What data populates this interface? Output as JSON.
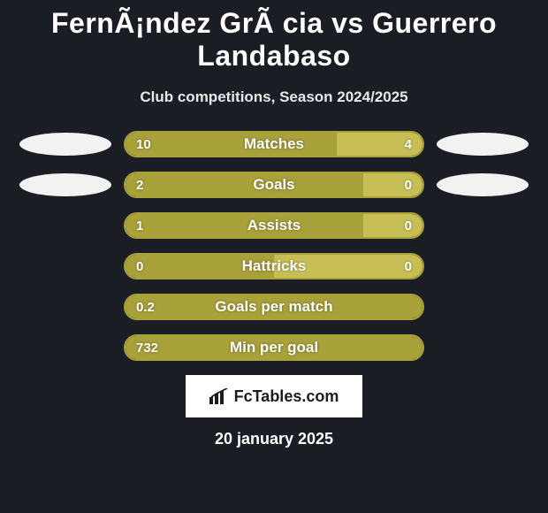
{
  "title": "FernÃ¡ndez GrÃ cia vs Guerrero Landabaso",
  "subtitle": "Club competitions, Season 2024/2025",
  "colors": {
    "left_bar": "#a9a13a",
    "right_bar": "#c7bf56",
    "border": "#a9a13a",
    "avatar": "#f2f2f2",
    "bg": "#1a1d24"
  },
  "rows": [
    {
      "label": "Matches",
      "left_val": "10",
      "right_val": "4",
      "left_pct": 71,
      "right_pct": 29,
      "show_avatars": true
    },
    {
      "label": "Goals",
      "left_val": "2",
      "right_val": "0",
      "left_pct": 80,
      "right_pct": 20,
      "show_avatars": true
    },
    {
      "label": "Assists",
      "left_val": "1",
      "right_val": "0",
      "left_pct": 80,
      "right_pct": 20,
      "show_avatars": false
    },
    {
      "label": "Hattricks",
      "left_val": "0",
      "right_val": "0",
      "left_pct": 50,
      "right_pct": 50,
      "show_avatars": false
    },
    {
      "label": "Goals per match",
      "left_val": "0.2",
      "right_val": "",
      "left_pct": 100,
      "right_pct": 0,
      "show_avatars": false
    },
    {
      "label": "Min per goal",
      "left_val": "732",
      "right_val": "",
      "left_pct": 100,
      "right_pct": 0,
      "show_avatars": false
    }
  ],
  "logo_text": "FcTables.com",
  "date": "20 january 2025"
}
